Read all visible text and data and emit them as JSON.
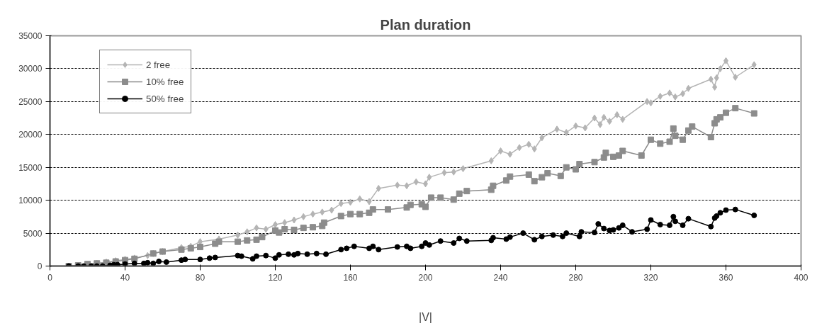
{
  "chart_data": {
    "type": "line",
    "title": "Plan duration",
    "xlabel": "|V|",
    "xlim": [
      0,
      400
    ],
    "xticks": [
      0,
      40,
      80,
      120,
      160,
      200,
      240,
      280,
      320,
      360,
      400
    ],
    "ylim": [
      0,
      35000
    ],
    "yticks": [
      0,
      5000,
      10000,
      15000,
      20000,
      25000,
      30000,
      35000
    ],
    "grid": "y",
    "legend": "top left",
    "series": [
      {
        "name": "2 free",
        "color": "#b4b4b4",
        "marker": "diamond",
        "x": [
          10,
          15,
          20,
          25,
          30,
          35,
          40,
          45,
          52,
          55,
          60,
          70,
          75,
          80,
          90,
          100,
          105,
          110,
          115,
          120,
          125,
          130,
          135,
          140,
          145,
          150,
          155,
          160,
          165,
          170,
          175,
          185,
          190,
          195,
          200,
          202,
          210,
          215,
          220,
          235,
          240,
          245,
          250,
          255,
          258,
          262,
          270,
          275,
          280,
          285,
          290,
          293,
          295,
          298,
          302,
          305,
          318,
          320,
          325,
          330,
          333,
          337,
          340,
          352,
          354,
          355,
          357,
          360,
          365,
          375
        ],
        "values": [
          0,
          100,
          200,
          400,
          600,
          800,
          1000,
          1200,
          1600,
          1900,
          2200,
          2800,
          3000,
          3700,
          4100,
          4700,
          5200,
          5800,
          5600,
          6300,
          6600,
          7000,
          7500,
          7900,
          8200,
          8500,
          9500,
          9700,
          10200,
          9800,
          11800,
          12300,
          12200,
          12800,
          12500,
          13500,
          14200,
          14300,
          14800,
          16000,
          17500,
          17000,
          18000,
          18500,
          17800,
          19500,
          20800,
          20300,
          21300,
          21000,
          22500,
          21500,
          22600,
          22000,
          23000,
          22300,
          25000,
          24800,
          25800,
          26300,
          25700,
          26200,
          27000,
          28400,
          27200,
          28600,
          30000,
          31200,
          28700,
          30600
        ]
      },
      {
        "name": "10% free",
        "color": "#8c8c8c",
        "marker": "square",
        "x": [
          10,
          15,
          20,
          25,
          30,
          35,
          40,
          45,
          55,
          60,
          70,
          75,
          80,
          88,
          90,
          100,
          105,
          110,
          113,
          120,
          122,
          125,
          130,
          135,
          140,
          145,
          146,
          155,
          160,
          165,
          170,
          172,
          180,
          190,
          192,
          198,
          200,
          203,
          208,
          215,
          218,
          222,
          235,
          236,
          243,
          245,
          255,
          258,
          262,
          265,
          272,
          275,
          280,
          282,
          290,
          295,
          296,
          300,
          303,
          305,
          315,
          320,
          325,
          330,
          332,
          333,
          337,
          340,
          342,
          352,
          354,
          355,
          357,
          360,
          365,
          375
        ],
        "values": [
          0,
          100,
          300,
          400,
          500,
          700,
          900,
          1100,
          1900,
          2200,
          2500,
          2700,
          2900,
          3400,
          3700,
          3700,
          3900,
          4000,
          4400,
          5400,
          5100,
          5600,
          5500,
          5800,
          5900,
          6100,
          6600,
          7600,
          7900,
          7900,
          8100,
          8600,
          8600,
          8900,
          9300,
          9400,
          9000,
          10400,
          10400,
          10100,
          11000,
          11400,
          11600,
          12200,
          13000,
          13600,
          13900,
          12900,
          13500,
          14100,
          13700,
          15000,
          14700,
          15500,
          15800,
          16500,
          17200,
          16600,
          16800,
          17500,
          16800,
          19200,
          18600,
          18900,
          20900,
          19800,
          19200,
          20600,
          21200,
          19600,
          21700,
          22300,
          22600,
          23300,
          24000,
          23200
        ]
      },
      {
        "name": "50% free",
        "color": "#000000",
        "marker": "circle",
        "x": [
          10,
          15,
          18,
          22,
          25,
          28,
          32,
          34,
          36,
          40,
          45,
          50,
          52,
          55,
          58,
          62,
          70,
          72,
          80,
          85,
          88,
          100,
          102,
          108,
          110,
          115,
          120,
          122,
          127,
          130,
          132,
          137,
          142,
          147,
          155,
          158,
          162,
          170,
          172,
          175,
          185,
          190,
          192,
          198,
          200,
          202,
          208,
          215,
          218,
          222,
          235,
          236,
          243,
          245,
          252,
          258,
          262,
          268,
          273,
          275,
          282,
          283,
          290,
          292,
          295,
          298,
          300,
          303,
          305,
          310,
          318,
          320,
          325,
          330,
          332,
          333,
          337,
          340,
          352,
          354,
          355,
          357,
          360,
          365,
          375
        ],
        "values": [
          0,
          0,
          0,
          0,
          0,
          0,
          100,
          200,
          200,
          300,
          400,
          400,
          500,
          400,
          700,
          600,
          900,
          1000,
          1000,
          1200,
          1300,
          1600,
          1500,
          1100,
          1500,
          1600,
          1200,
          1700,
          1800,
          1700,
          1900,
          1800,
          1900,
          1800,
          2500,
          2700,
          3000,
          2700,
          3000,
          2500,
          2900,
          3000,
          2700,
          3000,
          3500,
          3200,
          3800,
          3500,
          4200,
          3800,
          3900,
          4300,
          4100,
          4400,
          5000,
          4000,
          4500,
          4700,
          4500,
          5000,
          4500,
          5200,
          5100,
          6400,
          5700,
          5400,
          5500,
          5800,
          6200,
          5200,
          5600,
          7000,
          6300,
          6200,
          7500,
          6800,
          6200,
          7200,
          6000,
          7300,
          7600,
          8100,
          8500,
          8600,
          7700
        ]
      }
    ]
  }
}
